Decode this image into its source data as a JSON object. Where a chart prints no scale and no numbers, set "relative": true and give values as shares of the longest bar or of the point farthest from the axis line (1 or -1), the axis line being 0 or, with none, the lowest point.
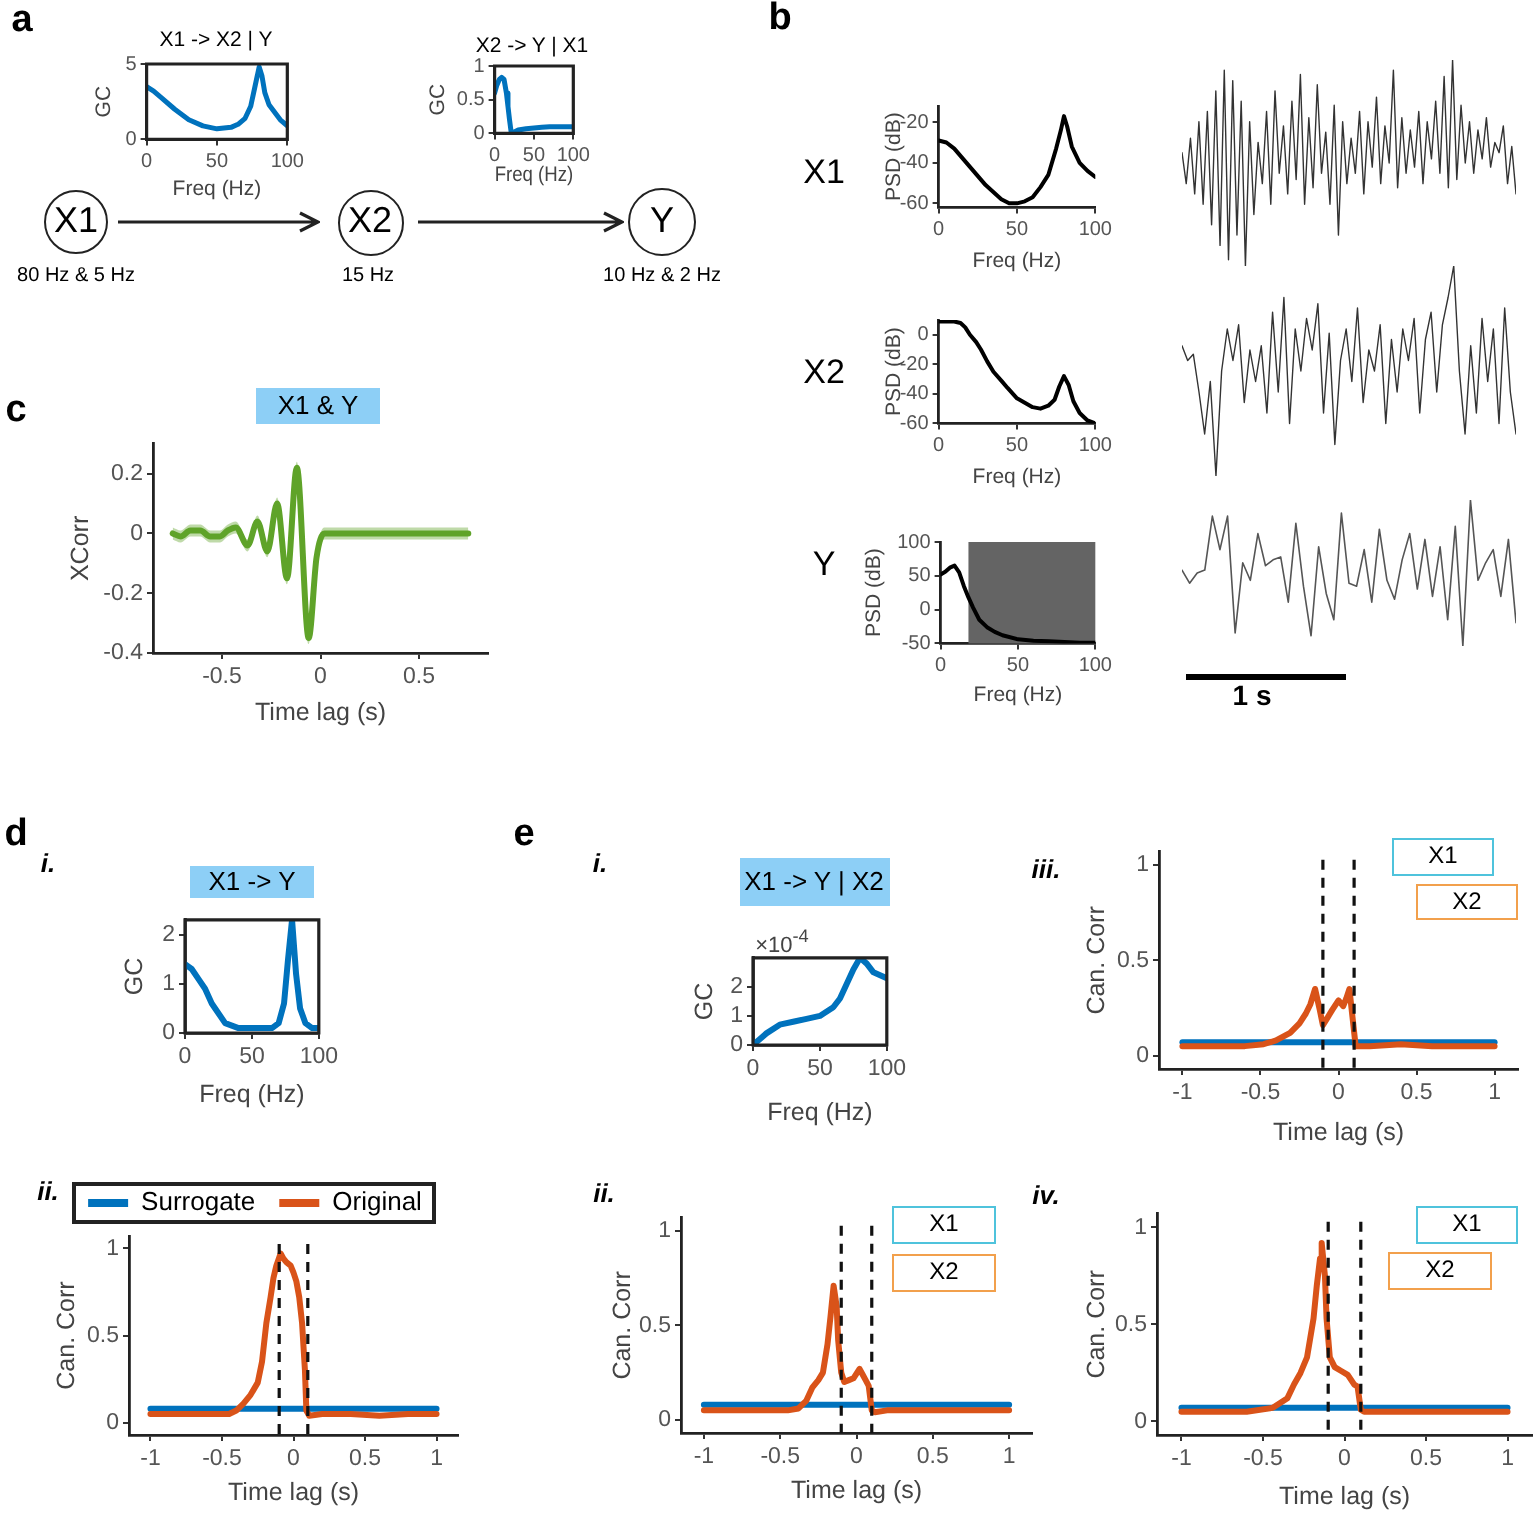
{
  "chart_data": [
    {
      "type": "line",
      "title": "X1 -> X2 | Y",
      "xlabel": "Freq (Hz)",
      "ylabel": "GC",
      "xlim": [
        0,
        100
      ],
      "xticks": [
        0,
        50,
        100
      ],
      "ylim": [
        0,
        5
      ],
      "yticks": [
        0,
        5
      ],
      "series": [
        {
          "color": "#0072bd",
          "x": [
            0,
            5,
            10,
            20,
            30,
            40,
            50,
            60,
            65,
            70,
            74,
            77,
            80,
            82,
            84,
            87,
            91,
            95,
            100
          ],
          "values": [
            3.5,
            3.2,
            2.8,
            2.0,
            1.3,
            0.9,
            0.7,
            0.8,
            1.0,
            1.4,
            2.2,
            3.5,
            4.8,
            4.2,
            3.1,
            2.3,
            1.8,
            1.3,
            0.9
          ]
        }
      ]
    },
    {
      "type": "line",
      "title": "X2 -> Y | X1",
      "xlabel": "Freq (Hz)",
      "ylabel": "GC",
      "xlim": [
        0,
        100
      ],
      "xticks": [
        0,
        50,
        100
      ],
      "ylim": [
        0,
        1
      ],
      "yticks": [
        0,
        0.5,
        1
      ],
      "series": [
        {
          "color": "#0072bd",
          "x": [
            0,
            3,
            6,
            9,
            12,
            15,
            17,
            19,
            21,
            25,
            30,
            40,
            50,
            60,
            70,
            80,
            90,
            100
          ],
          "values": [
            0.6,
            0.72,
            0.8,
            0.83,
            0.8,
            0.6,
            0.4,
            0.2,
            0.02,
            0.02,
            0.05,
            0.07,
            0.08,
            0.09,
            0.1,
            0.1,
            0.1,
            0.1
          ]
        }
      ]
    },
    {
      "type": "other",
      "annotations": [
        "a",
        "X1",
        "X2",
        "Y",
        "80 Hz & 5 Hz",
        "15 Hz",
        "10 Hz & 2 Hz"
      ]
    },
    {
      "type": "line",
      "xlabel": "Freq (Hz)",
      "ylabel": "PSD (dB)",
      "xlim": [
        0,
        100
      ],
      "xticks": [
        0,
        50,
        100
      ],
      "ylim": [
        -62,
        -12
      ],
      "yticks": [
        -60,
        -40,
        -20
      ],
      "annotations": [
        "b",
        "X1"
      ],
      "series": [
        {
          "color": "#000000",
          "x": [
            0,
            5,
            10,
            20,
            30,
            40,
            45,
            50,
            55,
            60,
            65,
            70,
            75,
            78,
            80,
            82,
            85,
            90,
            95,
            100
          ],
          "values": [
            -29,
            -30,
            -33,
            -42,
            -51,
            -58,
            -60,
            -60,
            -59,
            -57,
            -52,
            -46,
            -33,
            -24,
            -17,
            -22,
            -32,
            -40,
            -44,
            -47
          ]
        }
      ]
    },
    {
      "type": "line",
      "relative": true,
      "tick_labels": false,
      "categories": [
        null,
        null,
        null,
        null,
        null,
        null,
        null,
        null,
        null,
        null,
        null,
        null,
        null,
        null,
        null,
        null,
        null,
        null,
        null,
        null,
        null,
        null,
        null,
        null,
        null,
        null,
        null,
        null,
        null,
        null,
        null,
        null,
        null,
        null,
        null,
        null,
        null,
        null,
        null,
        null,
        null,
        null,
        null,
        null,
        null,
        null,
        null,
        null,
        null,
        null,
        null,
        null,
        null,
        null,
        null,
        null,
        null,
        null,
        null,
        null,
        null,
        null,
        null,
        null,
        null,
        null,
        null,
        null,
        null,
        null,
        null,
        null,
        null,
        null,
        null,
        null,
        null,
        null,
        null,
        null
      ],
      "series": [
        {
          "color": "#333333",
          "values": [
            0.55,
            0.4,
            0.62,
            0.35,
            0.7,
            0.3,
            0.75,
            0.2,
            0.85,
            0.1,
            0.95,
            0.03,
            0.9,
            0.15,
            0.8,
            0.0,
            0.7,
            0.25,
            0.6,
            0.4,
            0.75,
            0.3,
            0.85,
            0.45,
            0.68,
            0.35,
            0.8,
            0.42,
            0.93,
            0.3,
            0.72,
            0.38,
            0.88,
            0.45,
            0.65,
            0.3,
            0.78,
            0.15,
            0.7,
            0.4,
            0.62,
            0.45,
            0.75,
            0.35,
            0.7,
            0.48,
            0.82,
            0.4,
            0.68,
            0.5,
            0.95,
            0.38,
            0.72,
            0.45,
            0.66,
            0.48,
            0.75,
            0.4,
            0.7,
            0.52,
            0.8,
            0.45,
            0.92,
            0.38,
            1.0,
            0.42,
            0.78,
            0.5,
            0.7,
            0.45,
            0.66,
            0.52,
            0.72,
            0.48,
            0.6,
            0.55,
            0.68,
            0.4,
            0.58,
            0.35
          ]
        }
      ]
    },
    {
      "type": "line",
      "xlabel": "Freq (Hz)",
      "ylabel": "PSD (dB)",
      "xlim": [
        0,
        100
      ],
      "xticks": [
        0,
        50,
        100
      ],
      "ylim": [
        -60,
        10
      ],
      "yticks": [
        -60,
        -40,
        -20,
        0
      ],
      "annotations": [
        "X2"
      ],
      "series": [
        {
          "color": "#000000",
          "x": [
            0,
            5,
            10,
            14,
            17,
            20,
            24,
            27,
            31,
            35,
            40,
            44,
            50,
            55,
            60,
            65,
            70,
            74,
            77,
            80,
            83,
            86,
            90,
            95,
            100
          ],
          "values": [
            9,
            9,
            9,
            8,
            5,
            0,
            -5,
            -10,
            -18,
            -25,
            -31,
            -36,
            -43,
            -46,
            -49,
            -50,
            -48,
            -44,
            -35,
            -28,
            -34,
            -45,
            -53,
            -58,
            -60
          ]
        }
      ]
    },
    {
      "type": "line",
      "relative": true,
      "tick_labels": false,
      "categories": [
        null,
        null,
        null,
        null,
        null,
        null,
        null,
        null,
        null,
        null,
        null,
        null,
        null,
        null,
        null,
        null,
        null,
        null,
        null,
        null,
        null,
        null,
        null,
        null,
        null,
        null,
        null,
        null,
        null,
        null,
        null,
        null,
        null,
        null,
        null,
        null,
        null,
        null,
        null,
        null,
        null,
        null,
        null,
        null,
        null,
        null,
        null,
        null,
        null,
        null,
        null,
        null,
        null,
        null,
        null,
        null,
        null,
        null,
        null,
        null
      ],
      "series": [
        {
          "color": "#333333",
          "values": [
            0.62,
            0.55,
            0.58,
            0.4,
            0.2,
            0.45,
            0.0,
            0.5,
            0.7,
            0.55,
            0.72,
            0.35,
            0.6,
            0.45,
            0.62,
            0.3,
            0.78,
            0.4,
            0.85,
            0.25,
            0.7,
            0.5,
            0.75,
            0.6,
            0.82,
            0.3,
            0.68,
            0.15,
            0.55,
            0.7,
            0.45,
            0.8,
            0.35,
            0.6,
            0.5,
            0.72,
            0.25,
            0.65,
            0.4,
            0.7,
            0.55,
            0.75,
            0.3,
            0.65,
            0.78,
            0.4,
            0.72,
            0.85,
            1.0,
            0.5,
            0.2,
            0.62,
            0.3,
            0.75,
            0.45,
            0.7,
            0.25,
            0.8,
            0.4,
            0.2
          ]
        }
      ]
    },
    {
      "type": "line",
      "xlabel": "Freq (Hz)",
      "ylabel": "PSD (dB)",
      "xlim": [
        0,
        100
      ],
      "xticks": [
        0,
        50,
        100
      ],
      "ylim": [
        -50,
        100
      ],
      "yticks": [
        -50,
        0,
        50,
        100
      ],
      "annotations": [
        "Y"
      ],
      "bands": [
        {
          "axis": "x",
          "from": 18,
          "to": 100,
          "color": "#646464"
        }
      ],
      "series": [
        {
          "color": "#000000",
          "x": [
            0,
            3,
            6,
            9,
            12,
            15,
            18,
            21,
            25,
            30,
            35,
            40,
            50,
            60,
            70,
            80,
            90,
            100
          ],
          "values": [
            52,
            56,
            62,
            65,
            55,
            35,
            18,
            3,
            -15,
            -26,
            -33,
            -38,
            -44,
            -46,
            -47,
            -48,
            -49,
            -49
          ]
        }
      ]
    },
    {
      "type": "line",
      "relative": true,
      "tick_labels": false,
      "annotations": [
        "1 s"
      ],
      "categories": [
        null,
        null,
        null,
        null,
        null,
        null,
        null,
        null,
        null,
        null,
        null,
        null,
        null,
        null,
        null,
        null,
        null,
        null,
        null,
        null,
        null,
        null,
        null,
        null,
        null,
        null,
        null,
        null,
        null,
        null,
        null,
        null,
        null,
        null,
        null,
        null,
        null,
        null,
        null,
        null,
        null,
        null,
        null,
        null,
        null
      ],
      "series": [
        {
          "color": "#555555",
          "values": [
            0.52,
            0.43,
            0.5,
            0.52,
            0.89,
            0.66,
            0.89,
            0.09,
            0.57,
            0.45,
            0.77,
            0.55,
            0.59,
            0.61,
            0.3,
            0.84,
            0.41,
            0.07,
            0.68,
            0.36,
            0.18,
            0.91,
            0.43,
            0.41,
            0.66,
            0.3,
            0.8,
            0.45,
            0.32,
            0.59,
            0.77,
            0.39,
            0.73,
            0.34,
            0.68,
            0.18,
            0.82,
            0.0,
            1.0,
            0.45,
            0.57,
            0.66,
            0.34,
            0.73,
            0.16
          ]
        }
      ]
    },
    {
      "type": "line",
      "title": "X1 & Y",
      "xlabel": "Time lag (s)",
      "ylabel": "XCorr",
      "xlim": [
        -0.85,
        0.85
      ],
      "xticks": [
        -0.5,
        0,
        0.5
      ],
      "ylim": [
        -0.4,
        0.3
      ],
      "yticks": [
        -0.4,
        -0.2,
        0,
        0.2
      ],
      "annotations": [
        "c"
      ],
      "series": [
        {
          "color": "#5fa329",
          "x": [
            -0.75,
            -0.71,
            -0.66,
            -0.61,
            -0.56,
            -0.51,
            -0.47,
            -0.43,
            -0.37,
            -0.32,
            -0.27,
            -0.22,
            -0.17,
            -0.12,
            -0.06,
            -0.02,
            0.02,
            0.06,
            0.1,
            0.15,
            0.2,
            0.3,
            0.4,
            0.5,
            0.6,
            0.7,
            0.75
          ],
          "values": [
            0.0,
            -0.01,
            0.01,
            0.01,
            -0.01,
            -0.01,
            0.01,
            0.02,
            -0.04,
            0.04,
            -0.06,
            0.1,
            -0.15,
            0.22,
            -0.35,
            -0.08,
            0.0,
            0.0,
            0.0,
            0.0,
            0.0,
            0.0,
            0.0,
            0.0,
            0.0,
            0.0,
            0.0
          ],
          "lower": [
            -0.02,
            -0.03,
            -0.01,
            -0.01,
            -0.03,
            -0.03,
            -0.01,
            0.0,
            -0.06,
            0.02,
            -0.08,
            0.08,
            -0.17,
            0.2,
            -0.37,
            -0.1,
            -0.02,
            -0.02,
            -0.02,
            -0.02,
            -0.02,
            -0.02,
            -0.02,
            -0.02,
            -0.02,
            -0.02,
            -0.02
          ],
          "upper": [
            0.02,
            0.01,
            0.03,
            0.03,
            0.01,
            0.01,
            0.03,
            0.04,
            -0.02,
            0.06,
            -0.04,
            0.12,
            -0.13,
            0.24,
            -0.33,
            -0.06,
            0.02,
            0.02,
            0.02,
            0.02,
            0.02,
            0.02,
            0.02,
            0.02,
            0.02,
            0.02,
            0.02
          ]
        }
      ]
    },
    {
      "type": "line",
      "title": "X1 -> Y",
      "xlabel": "Freq (Hz)",
      "ylabel": "GC",
      "xlim": [
        0,
        100
      ],
      "xticks": [
        0,
        50,
        100
      ],
      "ylim": [
        0,
        2.3
      ],
      "yticks": [
        0,
        1,
        2
      ],
      "annotations": [
        "d",
        "i."
      ],
      "series": [
        {
          "color": "#0072bd",
          "x": [
            0,
            5,
            10,
            15,
            20,
            30,
            40,
            50,
            60,
            65,
            70,
            74,
            77,
            80,
            83,
            86,
            90,
            95,
            100
          ],
          "values": [
            1.4,
            1.3,
            1.1,
            0.9,
            0.6,
            0.2,
            0.1,
            0.1,
            0.1,
            0.1,
            0.2,
            0.6,
            1.5,
            2.3,
            1.2,
            0.5,
            0.2,
            0.1,
            0.1
          ]
        }
      ]
    },
    {
      "type": "line",
      "xlabel": "Time lag (s)",
      "ylabel": "Can. Corr",
      "xlim": [
        -1.15,
        1.15
      ],
      "xticks": [
        -1,
        -0.5,
        0,
        0.5,
        1
      ],
      "ylim": [
        -0.07,
        1.07
      ],
      "yticks": [
        0,
        0.5,
        1
      ],
      "legend": "top",
      "annotations": [
        "ii."
      ],
      "ref_lines": [
        {
          "axis": "x",
          "value": -0.1,
          "line_style": "dashed"
        },
        {
          "axis": "x",
          "value": 0.1,
          "line_style": "dashed"
        }
      ],
      "series": [
        {
          "name": "Surrogate",
          "color": "#0072bd",
          "x": [
            -1,
            -0.5,
            -0.1,
            0,
            0.1,
            0.5,
            1
          ],
          "values": [
            0.08,
            0.08,
            0.08,
            0.08,
            0.08,
            0.08,
            0.08
          ]
        },
        {
          "name": "Original",
          "color": "#d95319",
          "x": [
            -1,
            -0.8,
            -0.6,
            -0.45,
            -0.4,
            -0.35,
            -0.3,
            -0.25,
            -0.22,
            -0.19,
            -0.16,
            -0.14,
            -0.12,
            -0.09,
            -0.07,
            -0.05,
            -0.02,
            0.0,
            0.02,
            0.04,
            0.06,
            0.08,
            0.09,
            0.11,
            0.2,
            0.4,
            0.6,
            0.8,
            1
          ],
          "values": [
            0.05,
            0.05,
            0.05,
            0.05,
            0.07,
            0.11,
            0.16,
            0.23,
            0.35,
            0.57,
            0.72,
            0.83,
            0.9,
            0.97,
            0.94,
            0.92,
            0.9,
            0.86,
            0.81,
            0.72,
            0.57,
            0.3,
            0.07,
            0.04,
            0.05,
            0.05,
            0.04,
            0.05,
            0.05
          ]
        }
      ]
    },
    {
      "type": "line",
      "title": "X1 -> Y | X2",
      "xlabel": "Freq (Hz)",
      "ylabel": "GC",
      "xlim": [
        0,
        100
      ],
      "xticks": [
        0,
        50,
        100
      ],
      "ylim": [
        0,
        3
      ],
      "yticks": [
        0,
        1,
        2
      ],
      "annotations": [
        "e",
        "i.",
        "×10$^{-4}$"
      ],
      "series": [
        {
          "color": "#0072bd",
          "x": [
            0,
            5,
            10,
            20,
            30,
            40,
            50,
            60,
            65,
            70,
            75,
            80,
            85,
            90,
            95,
            100
          ],
          "values": [
            0,
            0.2,
            0.4,
            0.7,
            0.8,
            0.9,
            1.0,
            1.3,
            1.6,
            2.1,
            2.6,
            3.0,
            2.8,
            2.5,
            2.4,
            2.3
          ]
        }
      ]
    },
    {
      "type": "line",
      "xlabel": "Time lag (s)",
      "ylabel": "Can. Corr",
      "xlim": [
        -1.15,
        1.15
      ],
      "xticks": [
        -1,
        -0.5,
        0,
        0.5,
        1
      ],
      "ylim": [
        -0.07,
        1.07
      ],
      "yticks": [
        0,
        0.5,
        1
      ],
      "annotations": [
        "iii.",
        "X1",
        "X2"
      ],
      "ref_lines": [
        {
          "axis": "x",
          "value": -0.1,
          "line_style": "dashed"
        },
        {
          "axis": "x",
          "value": 0.1,
          "line_style": "dashed"
        }
      ],
      "series": [
        {
          "color": "#0072bd",
          "x": [
            -1,
            -0.5,
            0,
            0.5,
            1
          ],
          "values": [
            0.07,
            0.07,
            0.07,
            0.07,
            0.07
          ]
        },
        {
          "color": "#d95319",
          "x": [
            -1,
            -0.8,
            -0.6,
            -0.48,
            -0.4,
            -0.31,
            -0.25,
            -0.21,
            -0.18,
            -0.15,
            -0.12,
            -0.1,
            -0.07,
            -0.04,
            0.0,
            0.03,
            0.05,
            0.07,
            0.09,
            0.11,
            0.2,
            0.4,
            0.6,
            0.8,
            1
          ],
          "values": [
            0.05,
            0.05,
            0.05,
            0.06,
            0.08,
            0.12,
            0.17,
            0.22,
            0.27,
            0.35,
            0.24,
            0.16,
            0.2,
            0.24,
            0.29,
            0.26,
            0.3,
            0.35,
            0.2,
            0.05,
            0.05,
            0.06,
            0.05,
            0.05,
            0.05
          ]
        }
      ]
    },
    {
      "type": "line",
      "xlabel": "Time lag (s)",
      "ylabel": "Can. Corr",
      "xlim": [
        -1.15,
        1.15
      ],
      "xticks": [
        -1,
        -0.5,
        0,
        0.5,
        1
      ],
      "ylim": [
        -0.07,
        1.07
      ],
      "yticks": [
        0,
        0.5,
        1
      ],
      "annotations": [
        "ii.",
        "X1",
        "X2"
      ],
      "ref_lines": [
        {
          "axis": "x",
          "value": -0.1,
          "line_style": "dashed"
        },
        {
          "axis": "x",
          "value": 0.1,
          "line_style": "dashed"
        }
      ],
      "series": [
        {
          "color": "#0072bd",
          "x": [
            -1,
            -0.5,
            0,
            0.5,
            1
          ],
          "values": [
            0.08,
            0.08,
            0.08,
            0.08,
            0.08
          ]
        },
        {
          "color": "#d95319",
          "x": [
            -1,
            -0.8,
            -0.6,
            -0.45,
            -0.38,
            -0.33,
            -0.29,
            -0.25,
            -0.22,
            -0.19,
            -0.17,
            -0.15,
            -0.13,
            -0.12,
            -0.1,
            -0.08,
            -0.05,
            -0.02,
            0.02,
            0.04,
            0.06,
            0.08,
            0.1,
            0.12,
            0.2,
            0.4,
            0.6,
            0.8,
            1
          ],
          "values": [
            0.05,
            0.05,
            0.05,
            0.05,
            0.06,
            0.1,
            0.17,
            0.21,
            0.25,
            0.4,
            0.55,
            0.71,
            0.6,
            0.42,
            0.25,
            0.2,
            0.21,
            0.22,
            0.27,
            0.24,
            0.21,
            0.18,
            0.05,
            0.04,
            0.05,
            0.05,
            0.05,
            0.05,
            0.05
          ]
        }
      ]
    },
    {
      "type": "line",
      "xlabel": "Time lag (s)",
      "ylabel": "Can. Corr",
      "xlim": [
        -1.15,
        1.15
      ],
      "xticks": [
        -1,
        -0.5,
        0,
        0.5,
        1
      ],
      "ylim": [
        -0.07,
        1.07
      ],
      "yticks": [
        0,
        0.5,
        1
      ],
      "annotations": [
        "iv.",
        "X1",
        "X2"
      ],
      "ref_lines": [
        {
          "axis": "x",
          "value": -0.1,
          "line_style": "dashed"
        },
        {
          "axis": "x",
          "value": 0.1,
          "line_style": "dashed"
        }
      ],
      "series": [
        {
          "color": "#0072bd",
          "x": [
            -1,
            -0.5,
            0,
            0.5,
            1
          ],
          "values": [
            0.07,
            0.07,
            0.07,
            0.07,
            0.07
          ]
        },
        {
          "color": "#d95319",
          "x": [
            -1,
            -0.8,
            -0.6,
            -0.44,
            -0.35,
            -0.31,
            -0.27,
            -0.23,
            -0.19,
            -0.17,
            -0.15,
            -0.14,
            -0.12,
            -0.11,
            -0.09,
            -0.06,
            -0.02,
            0.02,
            0.06,
            0.08,
            0.1,
            0.12,
            0.2,
            0.4,
            0.6,
            0.8,
            1
          ],
          "values": [
            0.05,
            0.05,
            0.05,
            0.07,
            0.12,
            0.19,
            0.25,
            0.33,
            0.53,
            0.7,
            0.84,
            0.92,
            0.75,
            0.53,
            0.33,
            0.28,
            0.26,
            0.24,
            0.19,
            0.18,
            0.06,
            0.05,
            0.05,
            0.05,
            0.05,
            0.05,
            0.05
          ]
        }
      ]
    }
  ]
}
